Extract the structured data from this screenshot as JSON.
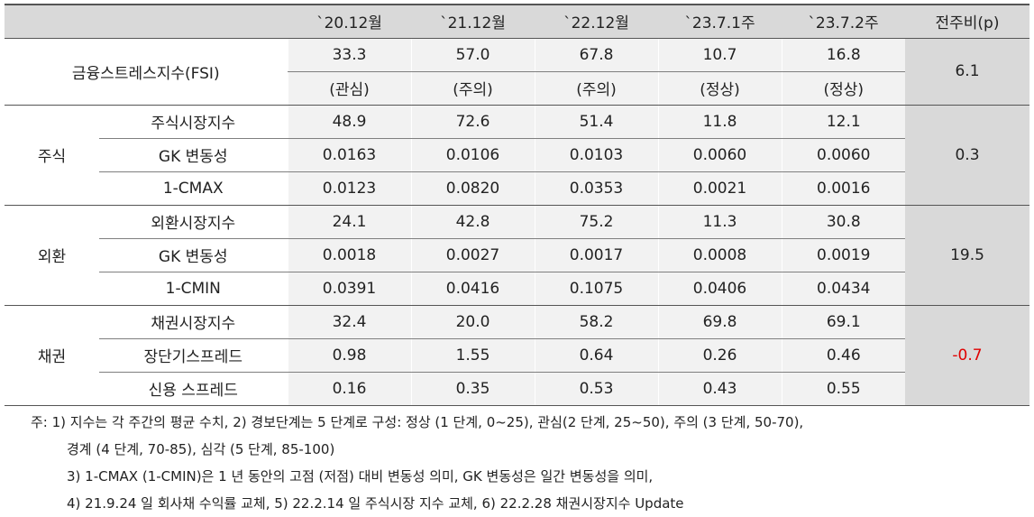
{
  "header": {
    "blank": "",
    "columns": [
      "`20.12월",
      "`21.12월",
      "`22.12월",
      "`23.7.1주",
      "`23.7.2주",
      "전주비(p)"
    ]
  },
  "fsi": {
    "label": "금융스트레스지수(FSI)",
    "values": [
      "33.3",
      "57.0",
      "67.8",
      "10.7",
      "16.8"
    ],
    "levels": [
      "(관심)",
      "(주의)",
      "(주의)",
      "(정상)",
      "(정상)"
    ],
    "change": "6.1"
  },
  "groups": [
    {
      "name": "주식",
      "change": "0.3",
      "rows": [
        {
          "label": "주식시장지수",
          "values": [
            "48.9",
            "72.6",
            "51.4",
            "11.8",
            "12.1"
          ]
        },
        {
          "label": "GK 변동성",
          "values": [
            "0.0163",
            "0.0106",
            "0.0103",
            "0.0060",
            "0.0060"
          ]
        },
        {
          "label": "1-CMAX",
          "values": [
            "0.0123",
            "0.0820",
            "0.0353",
            "0.0021",
            "0.0016"
          ]
        }
      ]
    },
    {
      "name": "외환",
      "change": "19.5",
      "rows": [
        {
          "label": "외환시장지수",
          "values": [
            "24.1",
            "42.8",
            "75.2",
            "11.3",
            "30.8"
          ]
        },
        {
          "label": "GK 변동성",
          "values": [
            "0.0018",
            "0.0027",
            "0.0017",
            "0.0008",
            "0.0019"
          ]
        },
        {
          "label": "1-CMIN",
          "values": [
            "0.0391",
            "0.0416",
            "0.1075",
            "0.0406",
            "0.0434"
          ]
        }
      ]
    },
    {
      "name": "채권",
      "change": "-0.7",
      "rows": [
        {
          "label": "채권시장지수",
          "values": [
            "32.4",
            "20.0",
            "58.2",
            "69.8",
            "69.1"
          ]
        },
        {
          "label": "장단기스프레드",
          "values": [
            "0.98",
            "1.55",
            "0.64",
            "0.26",
            "0.46"
          ]
        },
        {
          "label": "신용 스프레드",
          "values": [
            "0.16",
            "0.35",
            "0.53",
            "0.43",
            "0.55"
          ]
        }
      ]
    }
  ],
  "colors": {
    "negative": "#e00000",
    "header_bg": "#d9d9d9",
    "cell_bg": "#f2f2f2"
  },
  "notes": [
    "주: 1) 지수는 각 주간의 평균 수치, 2) 경보단계는 5 단계로 구성: 정상 (1 단계, 0~25), 관심(2 단계, 25~50), 주의 (3 단계, 50-70),",
    "경계 (4 단계, 70-85), 심각 (5 단계, 85-100)",
    "3) 1-CMAX (1-CMIN)은 1 년 동안의 고점 (저점) 대비 변동성 의미, GK 변동성은 일간 변동성을 의미,",
    "4) 21.9.24 일 회사채 수익률 교체, 5) 22.2.14 일 주식시장 지수 교체, 6) 22.2.28 채권시장지수 Update"
  ]
}
